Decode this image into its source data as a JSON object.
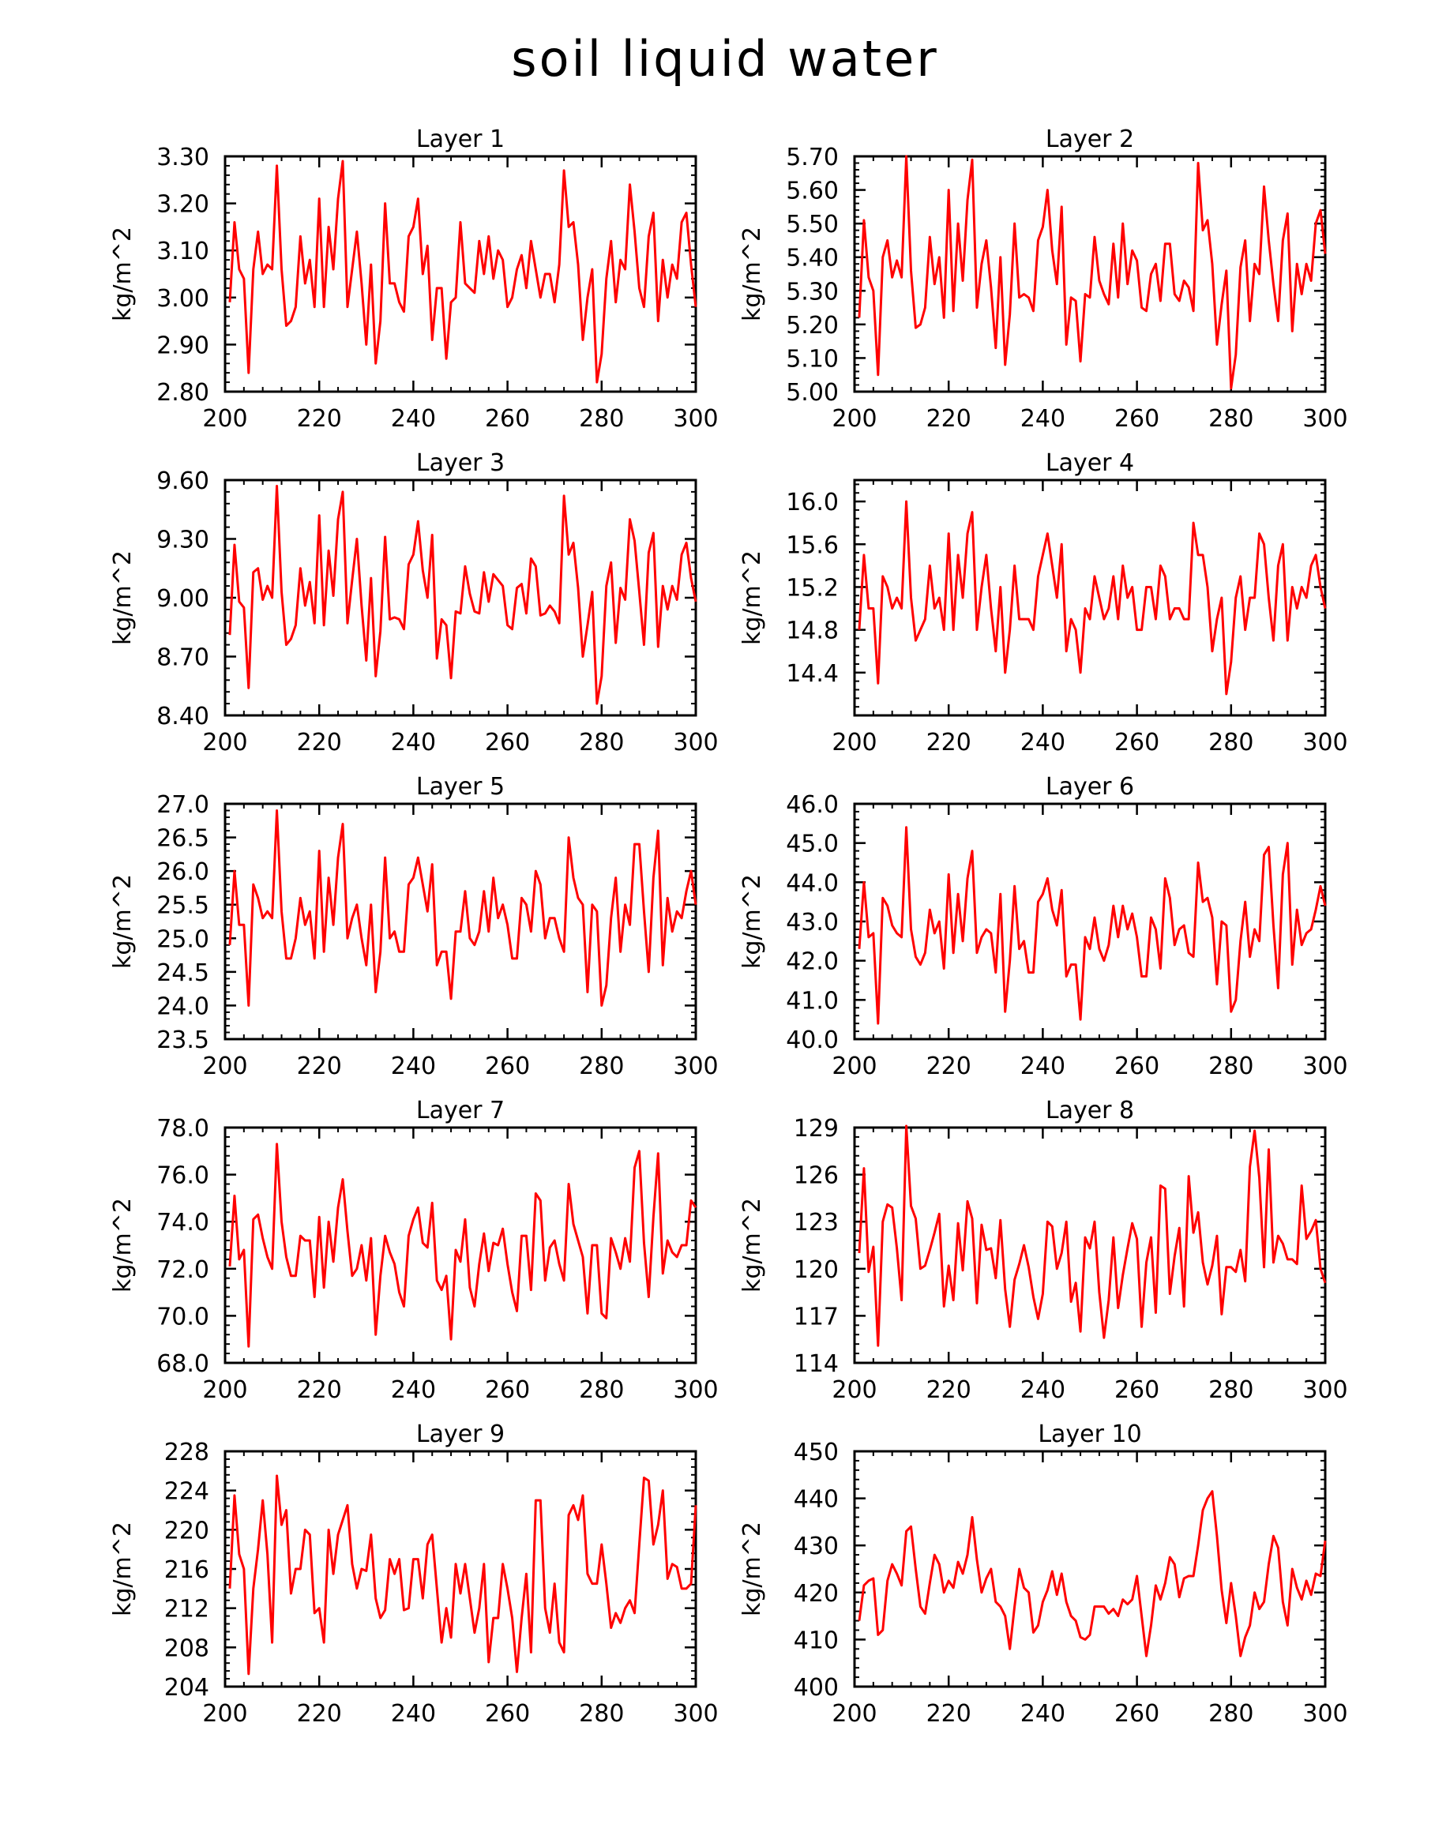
{
  "title": "soil liquid water",
  "bottom_label_partial": "",
  "line_color": "#ff0000",
  "chart_data": [
    {
      "type": "line",
      "title": "Layer 1",
      "ylabel": "kg/m^2",
      "xlim": [
        200,
        300
      ],
      "ylim": [
        2.8,
        3.3
      ],
      "xticks": [
        200,
        220,
        240,
        260,
        280,
        300
      ],
      "yticks": [
        "2.80",
        "2.90",
        "3.00",
        "3.10",
        "3.20",
        "3.30"
      ],
      "x_start": 201,
      "x_step": 1,
      "values": [
        2.99,
        3.16,
        3.06,
        3.04,
        2.84,
        3.06,
        3.14,
        3.05,
        3.07,
        3.06,
        3.28,
        3.06,
        2.94,
        2.95,
        2.98,
        3.13,
        3.03,
        3.08,
        2.98,
        3.21,
        2.98,
        3.15,
        3.06,
        3.21,
        3.29,
        2.98,
        3.06,
        3.14,
        3.03,
        2.9,
        3.07,
        2.86,
        2.95,
        3.2,
        3.03,
        3.03,
        2.99,
        2.97,
        3.13,
        3.15,
        3.21,
        3.05,
        3.11,
        2.91,
        3.02,
        3.02,
        2.87,
        2.99,
        3.0,
        3.16,
        3.03,
        3.02,
        3.01,
        3.12,
        3.05,
        3.13,
        3.04,
        3.1,
        3.08,
        2.98,
        3.0,
        3.06,
        3.09,
        3.02,
        3.12,
        3.06,
        3.0,
        3.05,
        3.05,
        2.99,
        3.07,
        3.27,
        3.15,
        3.16,
        3.07,
        2.91,
        3.0,
        3.06,
        2.82,
        2.88,
        3.04,
        3.12,
        2.99,
        3.08,
        3.06,
        3.24,
        3.14,
        3.02,
        2.98,
        3.13,
        3.18,
        2.95,
        3.08,
        3.0,
        3.07,
        3.04,
        3.16,
        3.18,
        3.07,
        2.98
      ]
    },
    {
      "type": "line",
      "title": "Layer 2",
      "ylabel": "kg/m^2",
      "xlim": [
        200,
        300
      ],
      "ylim": [
        5.0,
        5.7
      ],
      "xticks": [
        200,
        220,
        240,
        260,
        280,
        300
      ],
      "yticks": [
        "5.00",
        "5.10",
        "5.20",
        "5.30",
        "5.40",
        "5.50",
        "5.60",
        "5.70"
      ],
      "x_start": 201,
      "x_step": 1,
      "values": [
        5.22,
        5.51,
        5.34,
        5.3,
        5.05,
        5.4,
        5.45,
        5.34,
        5.39,
        5.34,
        5.7,
        5.36,
        5.19,
        5.2,
        5.25,
        5.46,
        5.32,
        5.4,
        5.22,
        5.6,
        5.24,
        5.5,
        5.33,
        5.57,
        5.69,
        5.25,
        5.38,
        5.45,
        5.31,
        5.13,
        5.4,
        5.08,
        5.23,
        5.5,
        5.28,
        5.29,
        5.28,
        5.24,
        5.45,
        5.49,
        5.6,
        5.42,
        5.32,
        5.55,
        5.14,
        5.28,
        5.27,
        5.09,
        5.29,
        5.28,
        5.46,
        5.33,
        5.29,
        5.26,
        5.44,
        5.28,
        5.5,
        5.32,
        5.42,
        5.39,
        5.25,
        5.24,
        5.35,
        5.38,
        5.27,
        5.44,
        5.44,
        5.29,
        5.27,
        5.33,
        5.31,
        5.24,
        5.68,
        5.48,
        5.51,
        5.38,
        5.14,
        5.26,
        5.36,
        5.01,
        5.11,
        5.37,
        5.45,
        5.21,
        5.38,
        5.35,
        5.61,
        5.45,
        5.32,
        5.21,
        5.45,
        5.53,
        5.18,
        5.38,
        5.29,
        5.38,
        5.33,
        5.5,
        5.54,
        5.41
      ]
    },
    {
      "type": "line",
      "title": "Layer 3",
      "ylabel": "kg/m^2",
      "xlim": [
        200,
        300
      ],
      "ylim": [
        8.4,
        9.6
      ],
      "xticks": [
        200,
        220,
        240,
        260,
        280,
        300
      ],
      "yticks": [
        "8.40",
        "8.70",
        "9.00",
        "9.30",
        "9.60"
      ],
      "x_start": 201,
      "x_step": 1,
      "values": [
        8.81,
        9.27,
        8.98,
        8.95,
        8.54,
        9.13,
        9.15,
        8.99,
        9.06,
        9.0,
        9.57,
        9.03,
        8.76,
        8.79,
        8.86,
        9.15,
        8.96,
        9.08,
        8.87,
        9.42,
        8.86,
        9.24,
        9.01,
        9.4,
        9.54,
        8.87,
        9.09,
        9.3,
        8.96,
        8.68,
        9.1,
        8.6,
        8.83,
        9.31,
        8.89,
        8.9,
        8.89,
        8.84,
        9.17,
        9.22,
        9.39,
        9.14,
        9.0,
        9.32,
        8.69,
        8.89,
        8.86,
        8.59,
        8.93,
        8.92,
        9.16,
        9.02,
        8.93,
        8.92,
        9.13,
        8.98,
        9.12,
        9.09,
        9.06,
        8.86,
        8.84,
        9.05,
        9.07,
        8.92,
        9.2,
        9.16,
        8.91,
        8.92,
        8.96,
        8.93,
        8.87,
        9.52,
        9.22,
        9.28,
        9.05,
        8.7,
        8.86,
        9.03,
        8.46,
        8.6,
        9.06,
        9.18,
        8.77,
        9.05,
        8.99,
        9.4,
        9.29,
        9.03,
        8.76,
        9.23,
        9.33,
        8.75,
        9.06,
        8.94,
        9.06,
        8.99,
        9.22,
        9.28,
        9.1,
        8.98
      ]
    },
    {
      "type": "line",
      "title": "Layer 4",
      "ylabel": "kg/m^2",
      "xlim": [
        200,
        300
      ],
      "ylim": [
        14.0,
        16.2
      ],
      "xticks": [
        200,
        220,
        240,
        260,
        280,
        300
      ],
      "yticks": [
        "14.4",
        "14.8",
        "15.2",
        "15.6",
        "16.0"
      ],
      "x_start": 201,
      "x_step": 1,
      "values": [
        14.8,
        15.5,
        15.0,
        15.0,
        14.3,
        15.3,
        15.2,
        15.0,
        15.1,
        15.0,
        16.0,
        15.1,
        14.7,
        14.8,
        14.9,
        15.4,
        15.0,
        15.1,
        14.8,
        15.7,
        14.8,
        15.5,
        15.1,
        15.7,
        15.9,
        14.8,
        15.2,
        15.5,
        15.0,
        14.6,
        15.2,
        14.4,
        14.8,
        15.4,
        14.9,
        14.9,
        14.9,
        14.8,
        15.3,
        15.5,
        15.7,
        15.4,
        15.1,
        15.6,
        14.6,
        14.9,
        14.8,
        14.4,
        15.0,
        14.9,
        15.3,
        15.1,
        14.9,
        15.0,
        15.3,
        14.9,
        15.4,
        15.1,
        15.2,
        14.8,
        14.8,
        15.2,
        15.2,
        14.9,
        15.4,
        15.3,
        14.9,
        15.0,
        15.0,
        14.9,
        14.9,
        15.8,
        15.5,
        15.5,
        15.2,
        14.6,
        14.9,
        15.1,
        14.2,
        14.5,
        15.1,
        15.3,
        14.8,
        15.1,
        15.1,
        15.7,
        15.6,
        15.1,
        14.7,
        15.4,
        15.6,
        14.7,
        15.2,
        15.0,
        15.2,
        15.1,
        15.4,
        15.5,
        15.2,
        15.0
      ]
    },
    {
      "type": "line",
      "title": "Layer 5",
      "ylabel": "kg/m^2",
      "xlim": [
        200,
        300
      ],
      "ylim": [
        23.5,
        27.0
      ],
      "xticks": [
        200,
        220,
        240,
        260,
        280,
        300
      ],
      "yticks": [
        "23.5",
        "24.0",
        "24.5",
        "25.0",
        "25.5",
        "26.0",
        "26.5",
        "27.0"
      ],
      "x_start": 201,
      "x_step": 1,
      "values": [
        24.9,
        26.0,
        25.2,
        25.2,
        24.0,
        25.8,
        25.6,
        25.3,
        25.4,
        25.3,
        26.9,
        25.4,
        24.7,
        24.7,
        25.0,
        25.6,
        25.2,
        25.4,
        24.7,
        26.3,
        24.8,
        25.9,
        25.2,
        26.2,
        26.7,
        25.0,
        25.3,
        25.5,
        25.0,
        24.6,
        25.5,
        24.2,
        24.8,
        26.2,
        25.0,
        25.1,
        24.8,
        24.8,
        25.8,
        25.9,
        26.2,
        25.8,
        25.4,
        26.1,
        24.6,
        24.8,
        24.8,
        24.1,
        25.1,
        25.1,
        25.7,
        25.0,
        24.9,
        25.1,
        25.7,
        25.1,
        25.9,
        25.3,
        25.5,
        25.2,
        24.7,
        24.7,
        25.6,
        25.5,
        25.1,
        26.0,
        25.8,
        25.0,
        25.3,
        25.3,
        25.0,
        24.8,
        26.5,
        25.9,
        25.6,
        25.5,
        24.2,
        25.5,
        25.4,
        24.0,
        24.3,
        25.3,
        25.9,
        24.8,
        25.5,
        25.2,
        26.4,
        26.4,
        25.4,
        24.5,
        25.9,
        26.6,
        24.6,
        25.6,
        25.1,
        25.4,
        25.3,
        25.7,
        26.0,
        25.5
      ]
    },
    {
      "type": "line",
      "title": "Layer 6",
      "ylabel": "kg/m^2",
      "xlim": [
        200,
        300
      ],
      "ylim": [
        40.0,
        46.0
      ],
      "xticks": [
        200,
        220,
        240,
        260,
        280,
        300
      ],
      "yticks": [
        "40.0",
        "41.0",
        "42.0",
        "43.0",
        "44.0",
        "45.0",
        "46.0"
      ],
      "x_start": 201,
      "x_step": 1,
      "values": [
        42.3,
        44.0,
        42.6,
        42.7,
        40.4,
        43.6,
        43.4,
        42.9,
        42.7,
        42.6,
        45.4,
        42.8,
        42.1,
        41.9,
        42.2,
        43.3,
        42.7,
        43.0,
        41.8,
        44.2,
        42.2,
        43.7,
        42.5,
        44.1,
        44.8,
        42.2,
        42.6,
        42.8,
        42.7,
        41.7,
        43.7,
        40.7,
        42.0,
        43.9,
        42.3,
        42.5,
        41.7,
        41.7,
        43.5,
        43.7,
        44.1,
        43.3,
        42.9,
        43.8,
        41.6,
        41.9,
        41.9,
        40.5,
        42.6,
        42.3,
        43.1,
        42.3,
        42.0,
        42.4,
        43.4,
        42.6,
        43.4,
        42.8,
        43.2,
        42.6,
        41.6,
        41.6,
        43.1,
        42.8,
        41.8,
        44.1,
        43.6,
        42.4,
        42.8,
        42.9,
        42.2,
        42.1,
        44.5,
        43.5,
        43.6,
        43.1,
        41.4,
        43.0,
        42.9,
        40.7,
        41.0,
        42.5,
        43.5,
        42.1,
        42.8,
        42.5,
        44.7,
        44.9,
        42.9,
        41.3,
        44.2,
        45.0,
        41.9,
        43.3,
        42.4,
        42.7,
        42.8,
        43.3,
        43.9,
        43.4
      ]
    },
    {
      "type": "line",
      "title": "Layer 7",
      "ylabel": "kg/m^2",
      "xlim": [
        200,
        300
      ],
      "ylim": [
        68.0,
        78.0
      ],
      "xticks": [
        200,
        220,
        240,
        260,
        280,
        300
      ],
      "yticks": [
        "68.0",
        "70.0",
        "72.0",
        "74.0",
        "76.0",
        "78.0"
      ],
      "x_start": 201,
      "x_step": 1,
      "values": [
        72.1,
        75.1,
        72.4,
        72.8,
        68.7,
        74.1,
        74.3,
        73.3,
        72.5,
        72.0,
        77.3,
        74.0,
        72.5,
        71.7,
        71.7,
        73.4,
        73.2,
        73.2,
        70.8,
        74.2,
        71.2,
        74.0,
        72.3,
        74.6,
        75.8,
        73.6,
        71.7,
        72.0,
        73.0,
        71.5,
        73.3,
        69.2,
        71.7,
        73.4,
        72.7,
        72.2,
        71.0,
        70.4,
        73.4,
        74.1,
        74.6,
        73.1,
        72.9,
        74.8,
        71.5,
        71.1,
        71.7,
        69.0,
        72.8,
        72.3,
        74.1,
        71.2,
        70.4,
        72.2,
        73.5,
        71.9,
        73.1,
        73.0,
        73.7,
        72.2,
        71.0,
        70.2,
        73.4,
        73.4,
        71.1,
        75.2,
        74.9,
        71.5,
        72.9,
        73.2,
        72.2,
        71.5,
        75.6,
        73.9,
        73.2,
        72.5,
        70.1,
        73.0,
        73.0,
        70.1,
        69.9,
        73.3,
        72.7,
        72.0,
        73.3,
        72.3,
        76.3,
        77.0,
        73.1,
        70.8,
        74.2,
        76.9,
        71.8,
        73.2,
        72.7,
        72.5,
        73.0,
        73.0,
        74.9,
        74.6
      ]
    },
    {
      "type": "line",
      "title": "Layer 8",
      "ylabel": "kg/m^2",
      "xlim": [
        200,
        300
      ],
      "ylim": [
        114,
        129
      ],
      "xticks": [
        200,
        220,
        240,
        260,
        280,
        300
      ],
      "yticks": [
        "114",
        "117",
        "120",
        "123",
        "126",
        "129"
      ],
      "x_start": 201,
      "x_step": 1,
      "values": [
        121.0,
        126.4,
        119.8,
        121.4,
        115.1,
        123.0,
        124.1,
        123.9,
        121.3,
        118.0,
        129.1,
        124.0,
        123.2,
        120.0,
        120.2,
        121.2,
        122.3,
        123.5,
        117.6,
        120.2,
        118.0,
        122.9,
        119.9,
        124.3,
        123.2,
        117.8,
        122.8,
        121.2,
        121.3,
        119.4,
        123.1,
        118.7,
        116.3,
        119.3,
        120.3,
        121.5,
        120.1,
        118.2,
        116.8,
        118.4,
        123.0,
        122.7,
        120.0,
        121.0,
        123.0,
        117.9,
        119.1,
        116.0,
        122.0,
        121.3,
        123.0,
        118.5,
        115.6,
        118.0,
        122.0,
        117.5,
        119.6,
        121.3,
        122.9,
        121.9,
        116.3,
        120.4,
        122.0,
        117.2,
        125.3,
        125.1,
        118.4,
        120.8,
        122.6,
        117.6,
        125.9,
        122.3,
        123.6,
        120.4,
        119.0,
        120.2,
        122.1,
        117.1,
        120.1,
        120.1,
        119.8,
        121.2,
        119.2,
        126.5,
        128.8,
        125.8,
        120.1,
        127.6,
        120.4,
        122.1,
        121.6,
        120.6,
        120.6,
        120.3,
        125.3,
        121.9,
        122.4,
        123.1,
        120.0,
        119.1
      ]
    },
    {
      "type": "line",
      "title": "Layer 9",
      "ylabel": "kg/m^2",
      "xlim": [
        200,
        300
      ],
      "ylim": [
        204,
        228
      ],
      "xticks": [
        200,
        220,
        240,
        260,
        280,
        300
      ],
      "yticks": [
        "204",
        "208",
        "212",
        "216",
        "220",
        "224",
        "228"
      ],
      "x_start": 201,
      "x_step": 1,
      "values": [
        214,
        223.5,
        217.5,
        216,
        205.3,
        214,
        218,
        223,
        217.5,
        208.5,
        225.5,
        220.5,
        222,
        213.5,
        216,
        216,
        220,
        219.5,
        211.5,
        212,
        208.5,
        220,
        215.5,
        219.5,
        221,
        222.5,
        216.5,
        214,
        216,
        215.8,
        219.5,
        213,
        211,
        211.8,
        217,
        215.5,
        217,
        211.8,
        212,
        217,
        217,
        213,
        218.5,
        219.5,
        214,
        208.5,
        212,
        209,
        216.5,
        213.5,
        216.5,
        213,
        209.5,
        212,
        216.5,
        206.5,
        211,
        211,
        216.5,
        214,
        211,
        205.5,
        211,
        215.5,
        207.5,
        223,
        223,
        212,
        209.5,
        214.5,
        208.5,
        207.5,
        221.5,
        222.5,
        221,
        223.5,
        215.5,
        214.5,
        214.5,
        218.5,
        214.5,
        210,
        211.5,
        210.5,
        212,
        212.8,
        211.5,
        218.5,
        225.3,
        225,
        218.5,
        220.5,
        224,
        215,
        216.5,
        216.2,
        214,
        214,
        214.5,
        222.5
      ]
    },
    {
      "type": "line",
      "title": "Layer 10",
      "ylabel": "kg/m^2",
      "xlim": [
        200,
        300
      ],
      "ylim": [
        400,
        450
      ],
      "xticks": [
        200,
        220,
        240,
        260,
        280,
        300
      ],
      "yticks": [
        "400",
        "410",
        "420",
        "430",
        "440",
        "450"
      ],
      "x_start": 201,
      "x_step": 1,
      "values": [
        414,
        421.5,
        422.5,
        423,
        411,
        412,
        422.5,
        426,
        424,
        421.5,
        433,
        434,
        425,
        417,
        415.5,
        422,
        428,
        426,
        420,
        422.5,
        421,
        426.5,
        424,
        428,
        436,
        427,
        420,
        423,
        425,
        418,
        417,
        415,
        408,
        417,
        425,
        421,
        420,
        411.5,
        413,
        418,
        420.5,
        424.5,
        419.5,
        424,
        418,
        415,
        414,
        410.5,
        410,
        411,
        417,
        417,
        417,
        415.5,
        416.5,
        415,
        418.5,
        417.5,
        418.5,
        423.5,
        415,
        406.5,
        413,
        421.5,
        418.5,
        422,
        427.5,
        426,
        419,
        423,
        423.5,
        423.5,
        430,
        437.5,
        440,
        441.5,
        432,
        420.5,
        413.5,
        422,
        415,
        406.5,
        410.5,
        413,
        420,
        416.5,
        418,
        426,
        432,
        429.5,
        418,
        413,
        425,
        421,
        418.5,
        422.5,
        419.5,
        424,
        423.5,
        431
      ]
    }
  ]
}
